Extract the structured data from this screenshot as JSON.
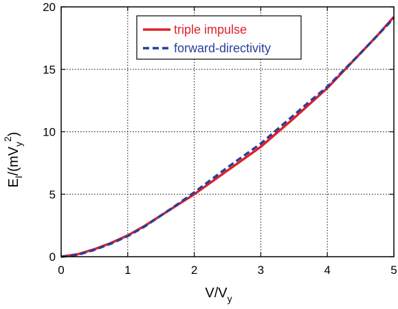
{
  "chart_data": {
    "type": "line",
    "xlabel": {
      "main": "V/V",
      "sub": "y"
    },
    "ylabel": {
      "main": "E",
      "sub1": "I",
      "mid": "/(mV",
      "sub2": "y",
      "sup": "2",
      "end": ")"
    },
    "xlim": [
      0,
      5
    ],
    "ylim": [
      0,
      20
    ],
    "xticks": [
      "0",
      "1",
      "2",
      "3",
      "4",
      "5"
    ],
    "yticks": [
      "0",
      "5",
      "10",
      "15",
      "20"
    ],
    "xtick_values": [
      0,
      1,
      2,
      3,
      4,
      5
    ],
    "ytick_values": [
      0,
      5,
      10,
      15,
      20
    ],
    "grid": true,
    "legend_position": "top-right",
    "series": [
      {
        "name": "triple impulse",
        "color": "#e0202a",
        "style": "solid",
        "x": [
          0,
          0.25,
          0.5,
          0.75,
          1,
          1.25,
          1.5,
          1.75,
          2,
          2.25,
          2.5,
          2.75,
          3,
          3.25,
          3.5,
          3.75,
          4,
          4.25,
          4.5,
          4.75,
          5
        ],
        "y": [
          0,
          0.2,
          0.6,
          1.1,
          1.7,
          2.45,
          3.3,
          4.15,
          5.0,
          5.95,
          6.9,
          7.85,
          8.8,
          9.95,
          11.1,
          12.3,
          13.5,
          14.9,
          16.3,
          17.7,
          19.2
        ]
      },
      {
        "name": "forward-directivity",
        "color": "#2a3f9a",
        "style": "dashed",
        "x": [
          0,
          0.25,
          0.5,
          0.75,
          1,
          1.25,
          1.5,
          1.75,
          2,
          2.25,
          2.5,
          2.75,
          3,
          3.25,
          3.5,
          3.75,
          4,
          4.25,
          4.5,
          4.75,
          5
        ],
        "y": [
          0,
          0.15,
          0.55,
          1.05,
          1.65,
          2.4,
          3.3,
          4.2,
          5.15,
          6.15,
          7.15,
          8.1,
          9.05,
          10.2,
          11.35,
          12.5,
          13.6,
          14.95,
          16.3,
          17.7,
          19.1
        ]
      }
    ]
  }
}
